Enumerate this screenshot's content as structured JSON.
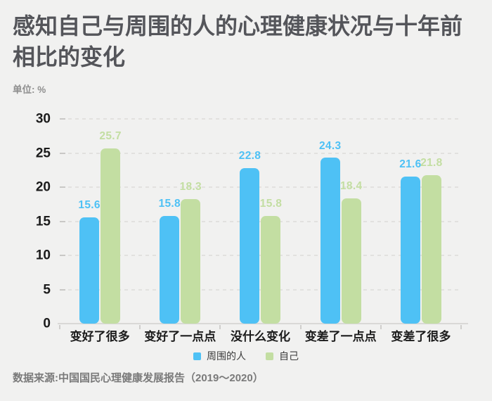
{
  "header": {
    "title": "感知自己与周围的人的心理健康状况与十年前相比的变化",
    "unit_label": "单位: %"
  },
  "chart_data": {
    "type": "bar",
    "title": "感知自己与周围的人的心理健康状况与十年前相比的变化",
    "categories": [
      "变好了很多",
      "变好了一点点",
      "没什么变化",
      "变差了一点点",
      "变差了很多"
    ],
    "series": [
      {
        "name": "周围的人",
        "color": "#4ec1f5",
        "values": [
          15.6,
          15.8,
          22.8,
          24.3,
          21.6
        ]
      },
      {
        "name": "自己",
        "color": "#c3dea2",
        "values": [
          25.7,
          18.3,
          15.8,
          18.4,
          21.8
        ]
      }
    ],
    "xlabel": "",
    "ylabel": "单位: %",
    "ylim": [
      0,
      30
    ],
    "ytick_step": 5,
    "grid": "horizontal-dashed",
    "legend_position": "bottom",
    "value_labels": "above-bars"
  },
  "footer": {
    "source": "数据来源:中国国民心理健康发展报告（2019～2020）"
  },
  "colors": {
    "background": "#f1f1f0",
    "title_text": "#54555a",
    "axis_text": "#1b1b1b",
    "muted_text": "#8f8f8f",
    "source_text": "#7a7a7a",
    "gridline": "#e2e1df",
    "series_blue": "#4ec1f5",
    "series_green": "#c3dea2"
  }
}
